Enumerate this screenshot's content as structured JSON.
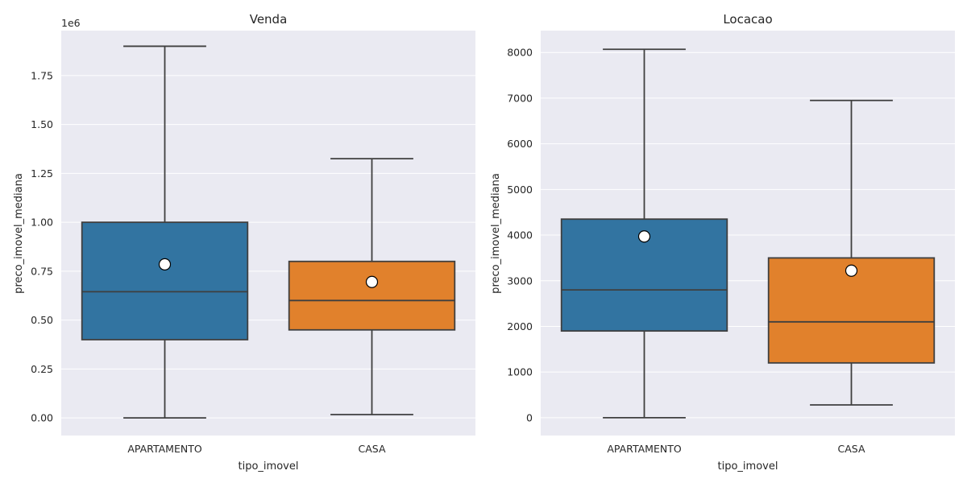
{
  "chart_data": [
    {
      "type": "box",
      "title": "Venda",
      "xlabel": "tipo_imovel",
      "ylabel": "preco_imovel_mediana",
      "y_offset_label": "1e6",
      "ylim": [
        -90000,
        1980000
      ],
      "yticks": [
        0,
        250000,
        500000,
        750000,
        1000000,
        1250000,
        1500000,
        1750000
      ],
      "ytick_labels": [
        "0.00",
        "0.25",
        "0.50",
        "0.75",
        "1.00",
        "1.25",
        "1.50",
        "1.75"
      ],
      "categories": [
        "APARTAMENTO",
        "CASA"
      ],
      "colors": [
        "#3274a1",
        "#e1812c"
      ],
      "boxes": [
        {
          "whisker_low": 0,
          "q1": 400000,
          "median": 645000,
          "q3": 1000000,
          "whisker_high": 1900000,
          "mean": 785000
        },
        {
          "whisker_low": 17000,
          "q1": 450000,
          "median": 600000,
          "q3": 800000,
          "whisker_high": 1325000,
          "mean": 695000
        }
      ],
      "grid": true
    },
    {
      "type": "box",
      "title": "Locacao",
      "xlabel": "tipo_imovel",
      "ylabel": "preco_imovel_mediana",
      "y_offset_label": "",
      "ylim": [
        -390,
        8480
      ],
      "yticks": [
        0,
        1000,
        2000,
        3000,
        4000,
        5000,
        6000,
        7000,
        8000
      ],
      "ytick_labels": [
        "0",
        "1000",
        "2000",
        "3000",
        "4000",
        "5000",
        "6000",
        "7000",
        "8000"
      ],
      "categories": [
        "APARTAMENTO",
        "CASA"
      ],
      "colors": [
        "#3274a1",
        "#e1812c"
      ],
      "boxes": [
        {
          "whisker_low": 0,
          "q1": 1900,
          "median": 2800,
          "q3": 4350,
          "whisker_high": 8070,
          "mean": 3970
        },
        {
          "whisker_low": 280,
          "q1": 1200,
          "median": 2100,
          "q3": 3500,
          "whisker_high": 6950,
          "mean": 3220
        }
      ],
      "grid": true
    }
  ]
}
